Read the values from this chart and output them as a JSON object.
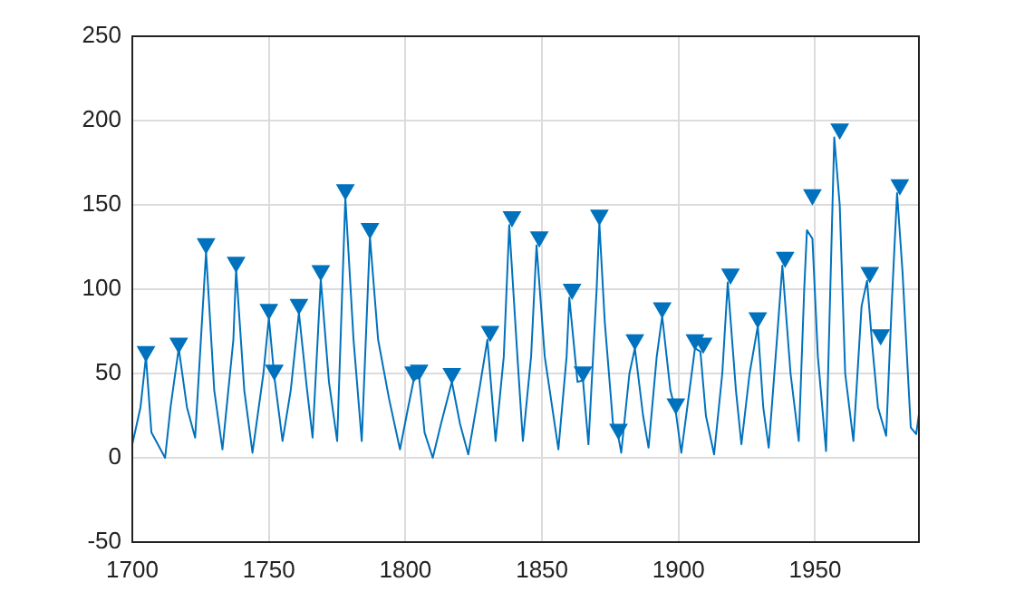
{
  "chart_data": {
    "type": "line",
    "xlim": [
      1700,
      1988
    ],
    "xticks": [
      1700,
      1750,
      1800,
      1850,
      1900,
      1950
    ],
    "ylim": [
      -50,
      250
    ],
    "yticks": [
      -50,
      0,
      50,
      100,
      150,
      200,
      250
    ],
    "grid": true,
    "legend": false,
    "series": [
      {
        "type": "line",
        "color": "#0072bd",
        "marker": "none",
        "x": [
          1700,
          1703,
          1705,
          1707,
          1712,
          1714,
          1717,
          1720,
          1723,
          1727,
          1730,
          1733,
          1737,
          1738,
          1741,
          1744,
          1748,
          1750,
          1752,
          1755,
          1758,
          1761,
          1764,
          1766,
          1769,
          1772,
          1775,
          1778,
          1781,
          1784,
          1787,
          1790,
          1794,
          1798,
          1801,
          1803,
          1805,
          1807,
          1810,
          1813,
          1817,
          1820,
          1823,
          1827,
          1830,
          1833,
          1836,
          1838,
          1841,
          1843,
          1846,
          1848,
          1851,
          1856,
          1859,
          1860,
          1863,
          1865,
          1867,
          1870,
          1871,
          1873,
          1876,
          1878,
          1879,
          1882,
          1884,
          1887,
          1889,
          1892,
          1894,
          1897,
          1899,
          1901,
          1904,
          1906,
          1908,
          1910,
          1913,
          1916,
          1918,
          1921,
          1923,
          1926,
          1929,
          1931,
          1933,
          1936,
          1938,
          1941,
          1944,
          1946,
          1947,
          1949,
          1951,
          1954,
          1957,
          1959,
          1961,
          1964,
          1967,
          1969,
          1971,
          1973,
          1976,
          1978,
          1980,
          1982,
          1985,
          1987,
          1988
        ],
        "values": [
          8,
          30,
          60,
          15,
          0,
          30,
          65,
          30,
          12,
          122,
          40,
          5,
          70,
          112,
          40,
          3,
          50,
          83,
          48,
          10,
          40,
          86,
          40,
          12,
          106,
          45,
          10,
          154,
          70,
          10,
          131,
          70,
          35,
          5,
          30,
          46,
          48,
          15,
          0,
          20,
          45,
          20,
          2,
          40,
          70,
          10,
          60,
          138,
          60,
          10,
          60,
          126,
          60,
          5,
          60,
          95,
          45,
          46,
          8,
          100,
          139,
          80,
          20,
          12,
          3,
          50,
          65,
          25,
          6,
          60,
          84,
          40,
          27,
          3,
          40,
          65,
          63,
          25,
          2,
          50,
          104,
          40,
          8,
          50,
          78,
          30,
          6,
          70,
          114,
          50,
          10,
          100,
          135,
          130,
          60,
          4,
          190,
          150,
          50,
          10,
          90,
          105,
          65,
          30,
          13,
          90,
          157,
          110,
          18,
          14,
          26
        ]
      },
      {
        "type": "scatter",
        "color": "#0072bd",
        "marker": "triangle",
        "x": [
          1705,
          1717,
          1727,
          1738,
          1750,
          1752,
          1761,
          1769,
          1778,
          1787,
          1803,
          1805,
          1817,
          1831,
          1839,
          1849,
          1861,
          1865,
          1871,
          1878,
          1884,
          1894,
          1899,
          1906,
          1909,
          1919,
          1929,
          1939,
          1949,
          1959,
          1970,
          1974,
          1981
        ],
        "values": [
          63,
          68,
          127,
          116,
          88,
          52,
          91,
          111,
          159,
          136,
          51,
          52,
          50,
          75,
          143,
          131,
          100,
          51,
          144,
          17,
          70,
          89,
          32,
          70,
          68,
          109,
          83,
          119,
          156,
          195,
          110,
          73,
          162
        ]
      }
    ]
  }
}
